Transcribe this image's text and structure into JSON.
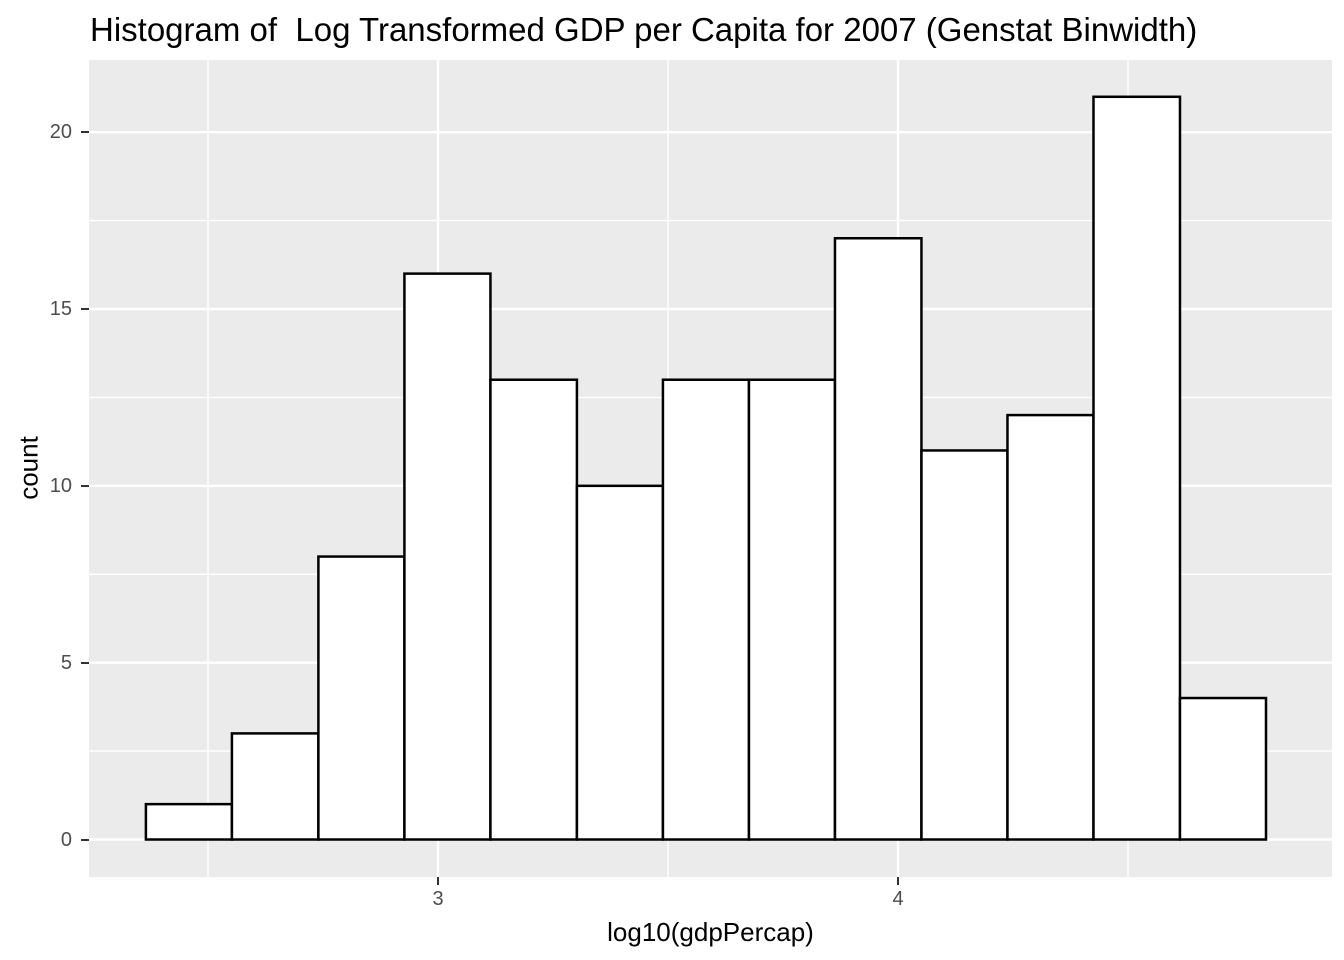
{
  "chart_data": {
    "type": "bar",
    "subtype": "histogram",
    "title": "Histogram of  Log Transformed GDP per Capita for 2007 (Genstat Binwidth)",
    "xlabel": "log10(gdpPercap)",
    "ylabel": "count",
    "bin_edges": [
      2.365,
      2.552,
      2.74,
      2.927,
      3.114,
      3.302,
      3.489,
      3.676,
      3.863,
      4.051,
      4.238,
      4.425,
      4.613,
      4.8
    ],
    "counts": [
      1,
      3,
      8,
      16,
      13,
      10,
      13,
      13,
      17,
      11,
      12,
      21,
      4
    ],
    "binwidth": 0.187,
    "total_count": 142,
    "x_tick_values": [
      3,
      4
    ],
    "x_tick_labels": [
      "3",
      "4"
    ],
    "y_tick_values": [
      0,
      5,
      10,
      15,
      20
    ],
    "y_tick_labels": [
      "0",
      "5",
      "10",
      "15",
      "20"
    ],
    "x_minor_values": [
      2.5,
      3.5,
      4.5
    ],
    "y_minor_values": [
      2.5,
      7.5,
      12.5,
      17.5
    ],
    "xlim": [
      2.2413,
      4.9435
    ],
    "ylim": [
      -1.06,
      22.04
    ],
    "grid": true,
    "legend_position": "none",
    "styles": {
      "panel_bg": "#EBEBEB",
      "grid_color": "#FFFFFF",
      "bar_fill": "#FFFFFF",
      "bar_stroke": "#000000",
      "tick_label_color": "#4D4D4D",
      "text_color": "#000000",
      "tick_mark_color": "#333333"
    }
  }
}
